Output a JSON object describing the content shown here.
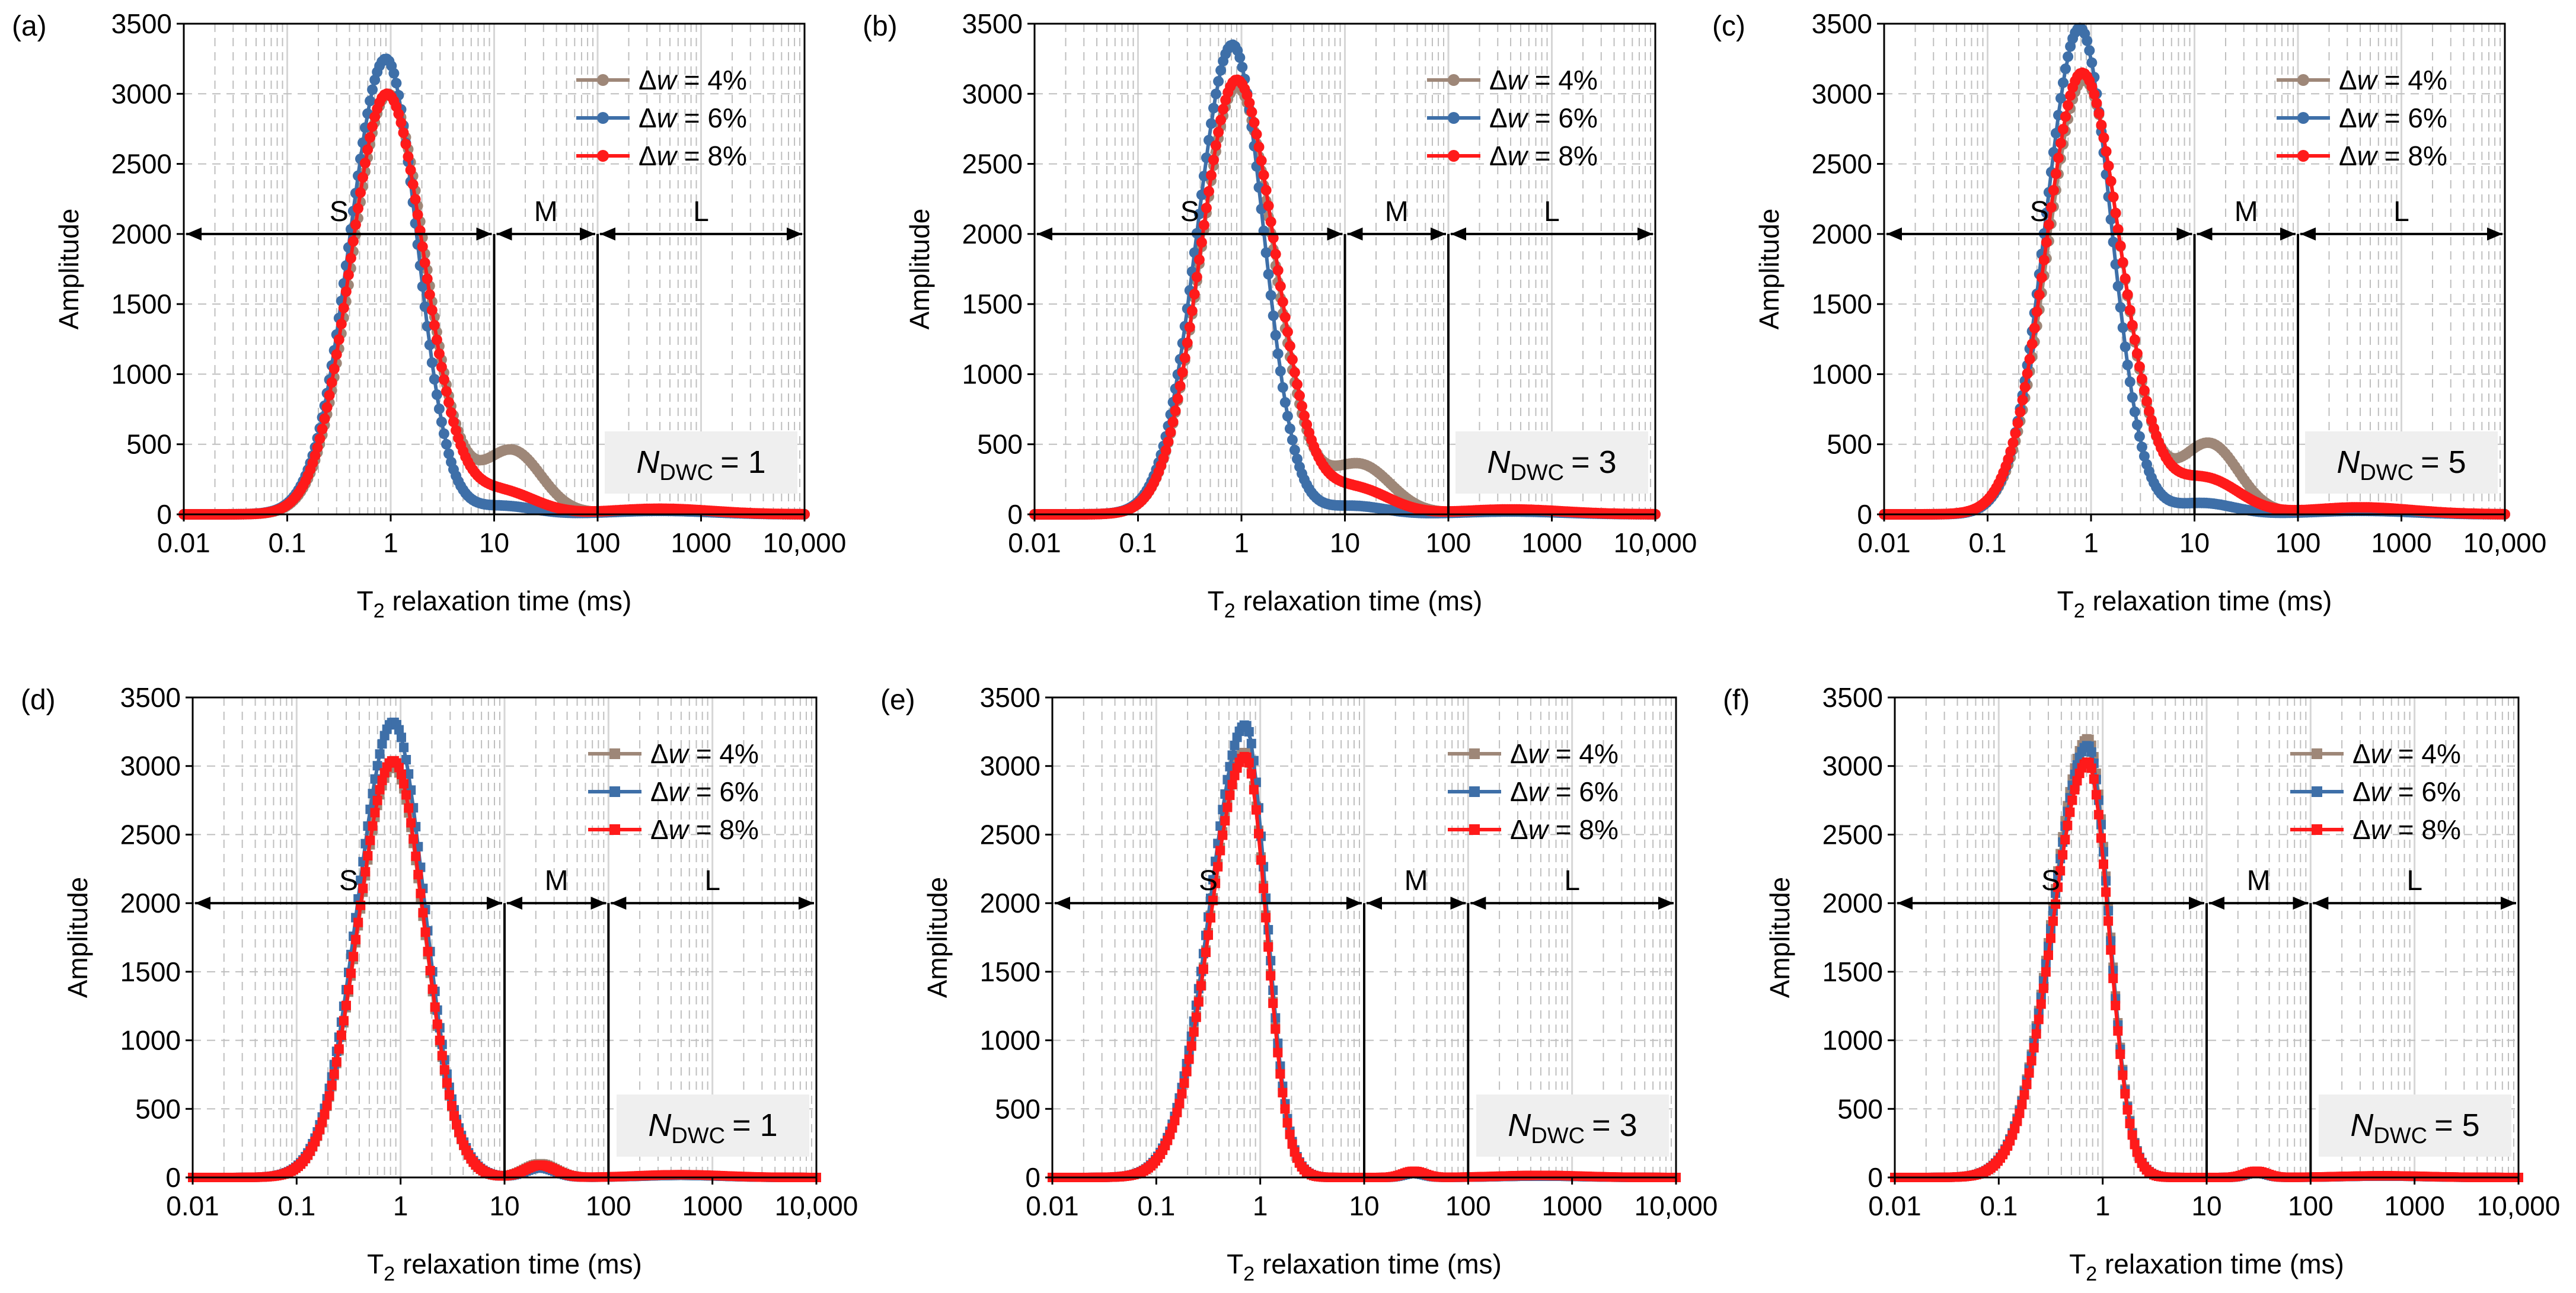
{
  "colors": {
    "dw4": "#9e8778",
    "dw6": "#3e6fa8",
    "dw8": "#ff1a1a"
  },
  "chart_data": [
    {
      "panel": "(a)",
      "type": "line",
      "marker": "circle",
      "ndwc_sub": "DWC",
      "ndwc_value": "= 1",
      "xlabel_main": "T",
      "xlabel_sub": "2",
      "xlabel_rest": " relaxation time (ms)",
      "ylabel": "Amplitude",
      "xscale": "log",
      "xlim": [
        0.01,
        10000
      ],
      "ylim": [
        0,
        3500
      ],
      "xticks": [
        "0.01",
        "0.1",
        "1",
        "10",
        "100",
        "1000",
        "10,000"
      ],
      "yticks": [
        "0",
        "500",
        "1000",
        "1500",
        "2000",
        "2500",
        "3000",
        "3500"
      ],
      "regions": [
        {
          "label": "S",
          "from": 0.01,
          "to": 10
        },
        {
          "label": "M",
          "from": 10,
          "to": 100
        },
        {
          "label": "L",
          "from": 100,
          "to": 10000
        }
      ],
      "region_y": 2000,
      "boundaries": [
        10,
        100
      ],
      "series": [
        {
          "name": "dw4",
          "legend_prefix": "Δ",
          "legend_var": "w",
          "legend_rest": " = 4%",
          "peak": 3000,
          "peak_T2": 0.95,
          "sigma_left": 0.35,
          "sigma_right": 0.36,
          "shoulder": {
            "amp": 450,
            "center": 15,
            "sigma": 0.28
          },
          "tail": {
            "amp": 25,
            "center": 400,
            "sigma": 0.5
          }
        },
        {
          "name": "dw6",
          "legend_prefix": "Δ",
          "legend_var": "w",
          "legend_rest": " = 6%",
          "peak": 3250,
          "peak_T2": 0.9,
          "sigma_left": 0.35,
          "sigma_right": 0.3,
          "shoulder": {
            "amp": 60,
            "center": 12,
            "sigma": 0.3
          },
          "tail": {
            "amp": 25,
            "center": 400,
            "sigma": 0.5
          }
        },
        {
          "name": "dw8",
          "legend_prefix": "Δ",
          "legend_var": "w",
          "legend_rest": " = 8%",
          "peak": 3000,
          "peak_T2": 0.92,
          "sigma_left": 0.35,
          "sigma_right": 0.36,
          "shoulder": {
            "amp": 160,
            "center": 12,
            "sigma": 0.32
          },
          "tail": {
            "amp": 40,
            "center": 400,
            "sigma": 0.5
          }
        }
      ]
    },
    {
      "panel": "(b)",
      "type": "line",
      "marker": "circle",
      "ndwc_sub": "DWC",
      "ndwc_value": "= 3",
      "xlabel_main": "T",
      "xlabel_sub": "2",
      "xlabel_rest": " relaxation time (ms)",
      "ylabel": "Amplitude",
      "xscale": "log",
      "xlim": [
        0.01,
        10000
      ],
      "ylim": [
        0,
        3500
      ],
      "xticks": [
        "0.01",
        "0.1",
        "1",
        "10",
        "100",
        "1000",
        "10,000"
      ],
      "yticks": [
        "0",
        "500",
        "1000",
        "1500",
        "2000",
        "2500",
        "3000",
        "3500"
      ],
      "regions": [
        {
          "label": "S",
          "from": 0.01,
          "to": 10
        },
        {
          "label": "M",
          "from": 10,
          "to": 100
        },
        {
          "label": "L",
          "from": 100,
          "to": 10000
        }
      ],
      "region_y": 2000,
      "boundaries": [
        10,
        100
      ],
      "series": [
        {
          "name": "dw4",
          "legend_prefix": "Δ",
          "legend_var": "w",
          "legend_rest": " = 4%",
          "peak": 3050,
          "peak_T2": 0.9,
          "sigma_left": 0.35,
          "sigma_right": 0.36,
          "shoulder": {
            "amp": 350,
            "center": 14,
            "sigma": 0.3
          },
          "tail": {
            "amp": 25,
            "center": 400,
            "sigma": 0.5
          }
        },
        {
          "name": "dw6",
          "legend_prefix": "Δ",
          "legend_var": "w",
          "legend_rest": " = 6%",
          "peak": 3350,
          "peak_T2": 0.82,
          "sigma_left": 0.34,
          "sigma_right": 0.3,
          "shoulder": {
            "amp": 60,
            "center": 12,
            "sigma": 0.3
          },
          "tail": {
            "amp": 20,
            "center": 400,
            "sigma": 0.5
          }
        },
        {
          "name": "dw8",
          "legend_prefix": "Δ",
          "legend_var": "w",
          "legend_rest": " = 8%",
          "peak": 3100,
          "peak_T2": 0.9,
          "sigma_left": 0.35,
          "sigma_right": 0.37,
          "shoulder": {
            "amp": 180,
            "center": 13,
            "sigma": 0.32
          },
          "tail": {
            "amp": 35,
            "center": 400,
            "sigma": 0.5
          }
        }
      ]
    },
    {
      "panel": "(c)",
      "type": "line",
      "marker": "circle",
      "ndwc_sub": "DWC",
      "ndwc_value": "= 5",
      "xlabel_main": "T",
      "xlabel_sub": "2",
      "xlabel_rest": " relaxation time (ms)",
      "ylabel": "Amplitude",
      "xscale": "log",
      "xlim": [
        0.01,
        10000
      ],
      "ylim": [
        0,
        3500
      ],
      "xticks": [
        "0.01",
        "0.1",
        "1",
        "10",
        "100",
        "1000",
        "10,000"
      ],
      "yticks": [
        "0",
        "500",
        "1000",
        "1500",
        "2000",
        "2500",
        "3000",
        "3500"
      ],
      "regions": [
        {
          "label": "S",
          "from": 0.01,
          "to": 10
        },
        {
          "label": "M",
          "from": 10,
          "to": 100
        },
        {
          "label": "L",
          "from": 100,
          "to": 10000
        }
      ],
      "region_y": 2000,
      "boundaries": [
        10,
        100
      ],
      "series": [
        {
          "name": "dw4",
          "legend_prefix": "Δ",
          "legend_var": "w",
          "legend_rest": " = 4%",
          "peak": 3100,
          "peak_T2": 0.85,
          "sigma_left": 0.35,
          "sigma_right": 0.36,
          "shoulder": {
            "amp": 500,
            "center": 14,
            "sigma": 0.28
          },
          "tail": {
            "amp": 30,
            "center": 400,
            "sigma": 0.5
          }
        },
        {
          "name": "dw6",
          "legend_prefix": "Δ",
          "legend_var": "w",
          "legend_rest": " = 6%",
          "peak": 3470,
          "peak_T2": 0.78,
          "sigma_left": 0.33,
          "sigma_right": 0.3,
          "shoulder": {
            "amp": 80,
            "center": 12,
            "sigma": 0.3
          },
          "tail": {
            "amp": 25,
            "center": 400,
            "sigma": 0.5
          }
        },
        {
          "name": "dw8",
          "legend_prefix": "Δ",
          "legend_var": "w",
          "legend_rest": " = 8%",
          "peak": 3150,
          "peak_T2": 0.82,
          "sigma_left": 0.35,
          "sigma_right": 0.37,
          "shoulder": {
            "amp": 250,
            "center": 13,
            "sigma": 0.32
          },
          "tail": {
            "amp": 50,
            "center": 400,
            "sigma": 0.5
          }
        }
      ]
    },
    {
      "panel": "(d)",
      "type": "line",
      "marker": "square",
      "ndwc_sub": "DWC",
      "ndwc_value": "= 1",
      "xlabel_main": "T",
      "xlabel_sub": "2",
      "xlabel_rest": " relaxation time (ms)",
      "ylabel": "Amplitude",
      "xscale": "log",
      "xlim": [
        0.01,
        10000
      ],
      "ylim": [
        0,
        3500
      ],
      "xticks": [
        "0.01",
        "0.1",
        "1",
        "10",
        "100",
        "1000",
        "10,000"
      ],
      "yticks": [
        "0",
        "500",
        "1000",
        "1500",
        "2000",
        "2500",
        "3000",
        "3500"
      ],
      "regions": [
        {
          "label": "S",
          "from": 0.01,
          "to": 10
        },
        {
          "label": "M",
          "from": 10,
          "to": 100
        },
        {
          "label": "L",
          "from": 100,
          "to": 10000
        }
      ],
      "region_y": 2000,
      "boundaries": [
        10,
        100
      ],
      "series": [
        {
          "name": "dw4",
          "legend_prefix": "Δ",
          "legend_var": "w",
          "legend_rest": " = 4%",
          "peak": 3000,
          "peak_T2": 0.85,
          "sigma_left": 0.34,
          "sigma_right": 0.3,
          "shoulder": {
            "amp": 100,
            "center": 22,
            "sigma": 0.15
          },
          "tail": {
            "amp": 15,
            "center": 500,
            "sigma": 0.4
          }
        },
        {
          "name": "dw6",
          "legend_prefix": "Δ",
          "legend_var": "w",
          "legend_rest": " = 6%",
          "peak": 3320,
          "peak_T2": 0.85,
          "sigma_left": 0.34,
          "sigma_right": 0.3,
          "shoulder": {
            "amp": 70,
            "center": 22,
            "sigma": 0.15
          },
          "tail": {
            "amp": 15,
            "center": 500,
            "sigma": 0.4
          }
        },
        {
          "name": "dw8",
          "legend_prefix": "Δ",
          "legend_var": "w",
          "legend_rest": " = 8%",
          "peak": 3040,
          "peak_T2": 0.85,
          "sigma_left": 0.34,
          "sigma_right": 0.3,
          "shoulder": {
            "amp": 90,
            "center": 22,
            "sigma": 0.15
          },
          "tail": {
            "amp": 20,
            "center": 500,
            "sigma": 0.4
          }
        }
      ]
    },
    {
      "panel": "(e)",
      "type": "line",
      "marker": "square",
      "ndwc_sub": "DWC",
      "ndwc_value": "= 3",
      "xlabel_main": "T",
      "xlabel_sub": "2",
      "xlabel_rest": " relaxation time (ms)",
      "ylabel": "Amplitude",
      "xscale": "log",
      "xlim": [
        0.01,
        10000
      ],
      "ylim": [
        0,
        3500
      ],
      "xticks": [
        "0.01",
        "0.1",
        "1",
        "10",
        "100",
        "1000",
        "10,000"
      ],
      "yticks": [
        "0",
        "500",
        "1000",
        "1500",
        "2000",
        "2500",
        "3000",
        "3500"
      ],
      "regions": [
        {
          "label": "S",
          "from": 0.01,
          "to": 10
        },
        {
          "label": "M",
          "from": 10,
          "to": 100
        },
        {
          "label": "L",
          "from": 100,
          "to": 10000
        }
      ],
      "region_y": 2000,
      "boundaries": [
        10,
        100
      ],
      "series": [
        {
          "name": "dw4",
          "legend_prefix": "Δ",
          "legend_var": "w",
          "legend_rest": " = 4%",
          "peak": 3100,
          "peak_T2": 0.72,
          "sigma_left": 0.34,
          "sigma_right": 0.2,
          "shoulder": {
            "amp": 40,
            "center": 30,
            "sigma": 0.1
          },
          "tail": {
            "amp": 10,
            "center": 500,
            "sigma": 0.4
          }
        },
        {
          "name": "dw6",
          "legend_prefix": "Δ",
          "legend_var": "w",
          "legend_rest": " = 6%",
          "peak": 3300,
          "peak_T2": 0.72,
          "sigma_left": 0.34,
          "sigma_right": 0.2,
          "shoulder": {
            "amp": 30,
            "center": 30,
            "sigma": 0.1
          },
          "tail": {
            "amp": 10,
            "center": 500,
            "sigma": 0.4
          }
        },
        {
          "name": "dw8",
          "legend_prefix": "Δ",
          "legend_var": "w",
          "legend_rest": " = 8%",
          "peak": 3070,
          "peak_T2": 0.72,
          "sigma_left": 0.34,
          "sigma_right": 0.2,
          "shoulder": {
            "amp": 45,
            "center": 30,
            "sigma": 0.1
          },
          "tail": {
            "amp": 15,
            "center": 500,
            "sigma": 0.4
          }
        }
      ]
    },
    {
      "panel": "(f)",
      "type": "line",
      "marker": "square",
      "ndwc_sub": "DWC",
      "ndwc_value": "= 5",
      "xlabel_main": "T",
      "xlabel_sub": "2",
      "xlabel_rest": " relaxation time (ms)",
      "ylabel": "Amplitude",
      "xscale": "log",
      "xlim": [
        0.01,
        10000
      ],
      "ylim": [
        0,
        3500
      ],
      "xticks": [
        "0.01",
        "0.1",
        "1",
        "10",
        "100",
        "1000",
        "10,000"
      ],
      "yticks": [
        "0",
        "500",
        "1000",
        "1500",
        "2000",
        "2500",
        "3000",
        "3500"
      ],
      "regions": [
        {
          "label": "S",
          "from": 0.01,
          "to": 10
        },
        {
          "label": "M",
          "from": 10,
          "to": 100
        },
        {
          "label": "L",
          "from": 100,
          "to": 10000
        }
      ],
      "region_y": 2000,
      "boundaries": [
        10,
        100
      ],
      "series": [
        {
          "name": "dw4",
          "legend_prefix": "Δ",
          "legend_var": "w",
          "legend_rest": " = 4%",
          "peak": 3200,
          "peak_T2": 0.72,
          "sigma_left": 0.34,
          "sigma_right": 0.2,
          "shoulder": {
            "amp": 40,
            "center": 30,
            "sigma": 0.1
          },
          "tail": {
            "amp": 10,
            "center": 500,
            "sigma": 0.4
          }
        },
        {
          "name": "dw6",
          "legend_prefix": "Δ",
          "legend_var": "w",
          "legend_rest": " = 6%",
          "peak": 3150,
          "peak_T2": 0.72,
          "sigma_left": 0.34,
          "sigma_right": 0.2,
          "shoulder": {
            "amp": 35,
            "center": 30,
            "sigma": 0.1
          },
          "tail": {
            "amp": 10,
            "center": 500,
            "sigma": 0.4
          }
        },
        {
          "name": "dw8",
          "legend_prefix": "Δ",
          "legend_var": "w",
          "legend_rest": " = 8%",
          "peak": 3030,
          "peak_T2": 0.72,
          "sigma_left": 0.34,
          "sigma_right": 0.2,
          "shoulder": {
            "amp": 45,
            "center": 30,
            "sigma": 0.1
          },
          "tail": {
            "amp": 12,
            "center": 500,
            "sigma": 0.4
          }
        }
      ]
    }
  ]
}
